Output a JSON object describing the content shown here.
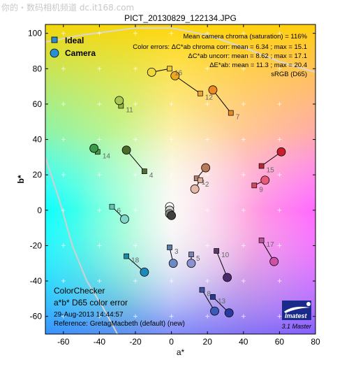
{
  "watermark": "你的・数码相机频道 dc.it168.com",
  "chart_data": {
    "type": "scatter",
    "title": "PICT_20130829_122134.JPG",
    "xlabel": "a*",
    "ylabel": "b*",
    "xlim": [
      -70,
      80
    ],
    "ylim": [
      -70,
      105
    ],
    "xticks": [
      -60,
      -40,
      -20,
      0,
      20,
      40,
      60,
      80
    ],
    "yticks": [
      -60,
      -40,
      -20,
      0,
      20,
      40,
      60,
      80,
      100
    ],
    "grid": false,
    "legend": {
      "placement": "top-left",
      "entries": [
        {
          "label": "Ideal",
          "marker": "square",
          "color": "#2a8fd0"
        },
        {
          "label": "Camera",
          "marker": "circle",
          "color": "#2a8fd0"
        }
      ]
    },
    "stats": [
      "Mean camera chroma (saturation) = 116%",
      "Color errors:  ΔC*ab chroma corr:  mean = 6.34 ;  max = 15.1",
      "ΔC*ab uncorr:  mean = 8.62 ;  max = 17.1",
      "ΔE*ab:  mean = 11.3 ;  max = 20.4",
      "sRGB (D65)"
    ],
    "info": [
      "ColorChecker",
      "a*b* D65 color error",
      "29-Aug-2013 14:44:57",
      "Reference: GretagMacbeth (default) (new)"
    ],
    "logo": {
      "text": "Imatest",
      "version": "3.1  Master"
    },
    "series": [
      {
        "name": "Ideal",
        "patches": [
          {
            "id": "1",
            "a": 14,
            "b": 18,
            "color": "#b07f6e"
          },
          {
            "id": "2",
            "a": 16,
            "b": 17,
            "color": "#e0b09a"
          },
          {
            "id": "3",
            "a": -1,
            "b": -21,
            "color": "#5c7ea6"
          },
          {
            "id": "4",
            "a": -15,
            "b": 22,
            "color": "#556b38"
          },
          {
            "id": "5",
            "a": 11,
            "b": -25,
            "color": "#7a82b8"
          },
          {
            "id": "6",
            "a": -33,
            "b": 2,
            "color": "#63c4b8"
          },
          {
            "id": "7",
            "a": 33,
            "b": 55,
            "color": "#e0882a"
          },
          {
            "id": "8",
            "a": 17,
            "b": -45,
            "color": "#3d52a4"
          },
          {
            "id": "9",
            "a": 46,
            "b": 14,
            "color": "#d04a5e"
          },
          {
            "id": "10",
            "a": 25,
            "b": -23,
            "color": "#5a3a6a"
          },
          {
            "id": "11",
            "a": -28,
            "b": 59,
            "color": "#98b440"
          },
          {
            "id": "12",
            "a": 16,
            "b": 66,
            "color": "#e8a42c"
          },
          {
            "id": "13",
            "a": 23,
            "b": -49,
            "color": "#283a8e"
          },
          {
            "id": "14",
            "a": -41,
            "b": 33,
            "color": "#4a9a4a"
          },
          {
            "id": "15",
            "a": 50,
            "b": 25,
            "color": "#b42a30"
          },
          {
            "id": "16",
            "a": -1,
            "b": 80,
            "color": "#ecca38"
          },
          {
            "id": "17",
            "a": 50,
            "b": -17,
            "color": "#b85496"
          },
          {
            "id": "18",
            "a": -25,
            "b": -26,
            "color": "#1a88a6"
          }
        ]
      },
      {
        "name": "Camera",
        "patches": [
          {
            "id": "1",
            "a": 19,
            "b": 24,
            "color": "#b97a58"
          },
          {
            "id": "2",
            "a": 13,
            "b": 12,
            "color": "#e8b8a8"
          },
          {
            "id": "3",
            "a": 1,
            "b": -30,
            "color": "#6a8ac4"
          },
          {
            "id": "4",
            "a": -25,
            "b": 34,
            "color": "#4a6a2a"
          },
          {
            "id": "5",
            "a": 11,
            "b": -30,
            "color": "#8a92d0"
          },
          {
            "id": "6",
            "a": -26,
            "b": -5,
            "color": "#80d8c8"
          },
          {
            "id": "7",
            "a": 23,
            "b": 68,
            "color": "#f08a20"
          },
          {
            "id": "8",
            "a": 24,
            "b": -57,
            "color": "#3a5ab8"
          },
          {
            "id": "9",
            "a": 52,
            "b": 17,
            "color": "#e85a78"
          },
          {
            "id": "10",
            "a": 31,
            "b": -38,
            "color": "#4a2a6a"
          },
          {
            "id": "11",
            "a": -29,
            "b": 62,
            "color": "#a8c850"
          },
          {
            "id": "12",
            "a": 2,
            "b": 76,
            "color": "#f0a820"
          },
          {
            "id": "13",
            "a": 32,
            "b": -58,
            "color": "#2a3aa0"
          },
          {
            "id": "14",
            "a": -43,
            "b": 35,
            "color": "#3a9a4a"
          },
          {
            "id": "15",
            "a": 61,
            "b": 33,
            "color": "#c81e2e"
          },
          {
            "id": "16",
            "a": -11,
            "b": 78,
            "color": "#f0d838"
          },
          {
            "id": "17",
            "a": 57,
            "b": -29,
            "color": "#d050a8"
          },
          {
            "id": "18",
            "a": -15,
            "b": -35,
            "color": "#1a8ab8"
          }
        ]
      }
    ],
    "neutral_points": [
      {
        "a": -1,
        "b": 2,
        "color": "#ffffff"
      },
      {
        "a": -1,
        "b": 0,
        "color": "#d0d0d0"
      },
      {
        "a": -1,
        "b": -2,
        "color": "#909090"
      },
      {
        "a": 0,
        "b": -3,
        "color": "#404040"
      }
    ]
  }
}
